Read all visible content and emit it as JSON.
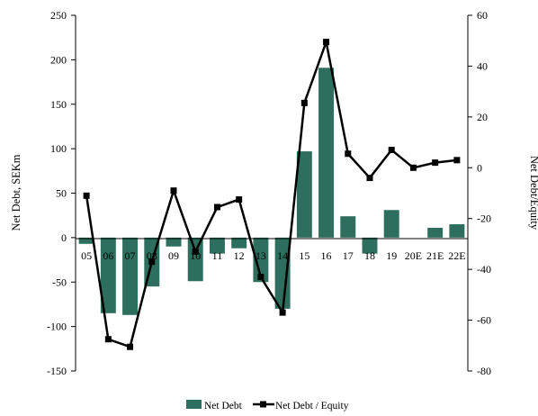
{
  "chart_data": {
    "type": "bar+line",
    "categories": [
      "05",
      "06",
      "07",
      "08",
      "09",
      "10",
      "11",
      "12",
      "13",
      "14",
      "15",
      "16",
      "17",
      "18",
      "19",
      "20E",
      "21E",
      "22E"
    ],
    "series": [
      {
        "name": "Net Debt",
        "type": "bar",
        "axis": "left",
        "color": "#2e6e5e",
        "values": [
          -7,
          -85,
          -87,
          -55,
          -10,
          -49,
          -18,
          -12,
          -50,
          -80,
          97,
          191,
          24,
          -18,
          31,
          0,
          11,
          15
        ]
      },
      {
        "name": "Net Debt / Equity",
        "type": "line",
        "axis": "right",
        "color": "#000000",
        "values": [
          -11,
          -67.5,
          -70.5,
          -37,
          -9,
          -33,
          -15.5,
          -12.5,
          -43,
          -57,
          25.5,
          49.5,
          5.5,
          -4,
          7,
          0,
          2,
          3
        ]
      }
    ],
    "ylabel": "Net Debt, SEKm",
    "y2label": "Net Debt/Equity",
    "ylim": [
      -150,
      250
    ],
    "yticks": [
      "250",
      "200",
      "150",
      "100",
      "50",
      "0",
      "-50",
      "-100",
      "-150"
    ],
    "y2lim": [
      -80,
      60
    ],
    "y2ticks": [
      "60",
      "40",
      "20",
      "0",
      "-20",
      "-40",
      "-60",
      "-80"
    ],
    "legend": {
      "position": "bottom",
      "bar_label": "Net Debt",
      "line_label": "Net Debt / Equity"
    },
    "grid": false
  }
}
